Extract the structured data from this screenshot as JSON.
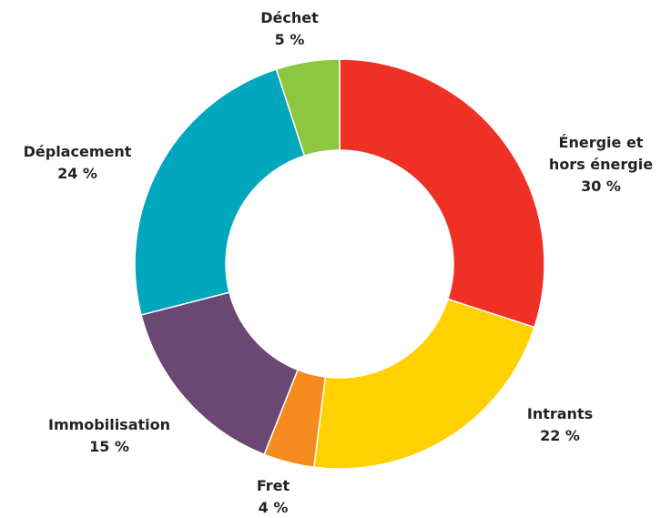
{
  "chart_data": {
    "type": "donut",
    "categories": [
      "Énergie et hors énergie",
      "Intrants",
      "Fret",
      "Immobilisation",
      "Déplacement",
      "Déchet"
    ],
    "values": [
      30,
      22,
      4,
      15,
      24,
      5
    ],
    "value_labels": [
      "30 %",
      "22 %",
      "4 %",
      "15 %",
      "24 %",
      "5 %"
    ],
    "colors": [
      "#ee3124",
      "#ffd100",
      "#f58a1f",
      "#6b4774",
      "#00a7bd",
      "#8dc63f"
    ]
  }
}
